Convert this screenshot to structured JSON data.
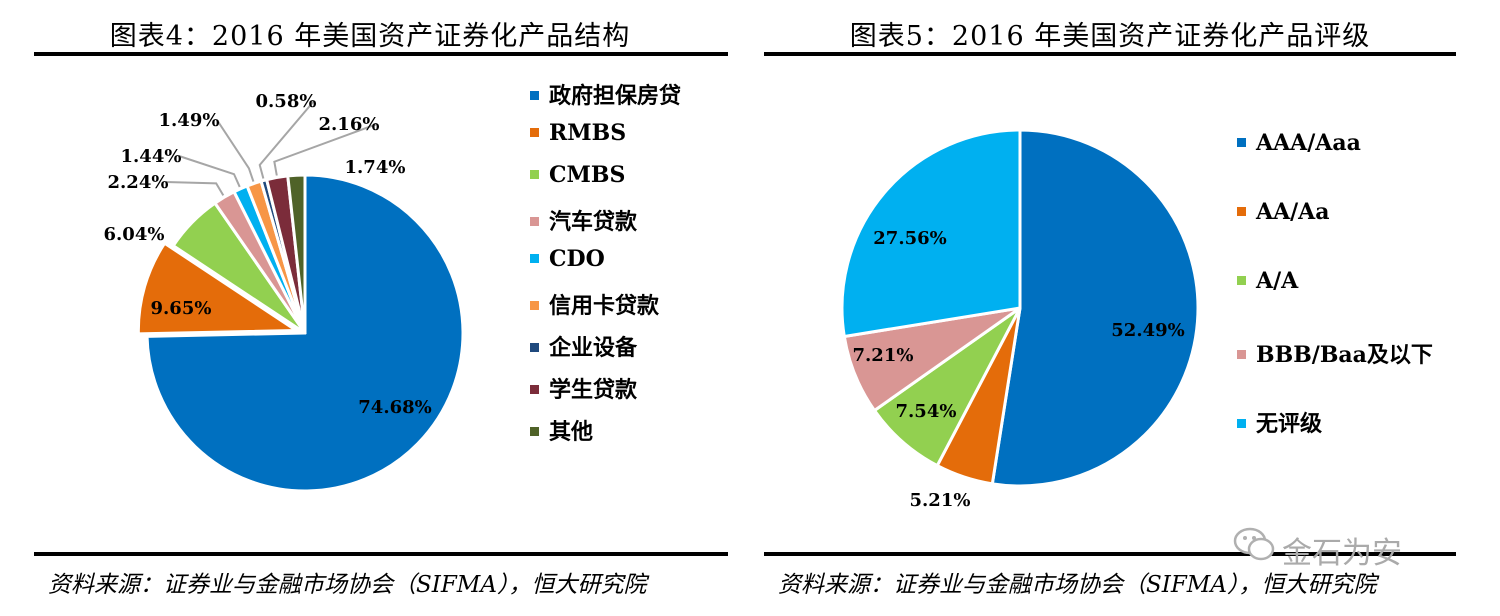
{
  "left": {
    "title": "图表4：2016 年美国资产证券化产品结构",
    "source": "资料来源：证券业与金融市场协会（SIFMA），恒大研究院"
  },
  "right": {
    "title": "图表5：2016 年美国资产证券化产品评级",
    "source": "资料来源：证券业与金融市场协会（SIFMA），恒大研究院"
  },
  "watermark": "金石为安",
  "chart_data": [
    {
      "type": "pie",
      "title": "图表4：2016 年美国资产证券化产品结构",
      "legend_position": "right",
      "slices": [
        {
          "name": "政府担保房贷",
          "value": 74.68,
          "label": "74.68%",
          "color": "#0070C0"
        },
        {
          "name": "RMBS",
          "value": 9.65,
          "label": "9.65%",
          "color": "#E46C0A"
        },
        {
          "name": "CMBS",
          "value": 6.04,
          "label": "6.04%",
          "color": "#92D050"
        },
        {
          "name": "汽车贷款",
          "value": 2.24,
          "label": "2.24%",
          "color": "#D99694"
        },
        {
          "name": "CDO",
          "value": 1.44,
          "label": "1.44%",
          "color": "#00B0F0"
        },
        {
          "name": "信用卡贷款",
          "value": 1.49,
          "label": "1.49%",
          "color": "#F79646"
        },
        {
          "name": "企业设备",
          "value": 0.58,
          "label": "0.58%",
          "color": "#1F497D"
        },
        {
          "name": "学生贷款",
          "value": 2.16,
          "label": "2.16%",
          "color": "#7B2C3A"
        },
        {
          "name": "其他",
          "value": 1.74,
          "label": "1.74%",
          "color": "#4F6228"
        }
      ]
    },
    {
      "type": "pie",
      "title": "图表5：2016 年美国资产证券化产品评级",
      "legend_position": "right",
      "slices": [
        {
          "name": "AAA/Aaa",
          "value": 52.49,
          "label": "52.49%",
          "color": "#0070C0"
        },
        {
          "name": "AA/Aa",
          "value": 5.21,
          "label": "5.21%",
          "color": "#E46C0A"
        },
        {
          "name": "A/A",
          "value": 7.54,
          "label": "7.54%",
          "color": "#92D050"
        },
        {
          "name": "BBB/Baa及以下",
          "value": 7.21,
          "label": "7.21%",
          "color": "#D99694"
        },
        {
          "name": "无评级",
          "value": 27.56,
          "label": "27.56%",
          "color": "#00B0F0"
        }
      ]
    }
  ]
}
